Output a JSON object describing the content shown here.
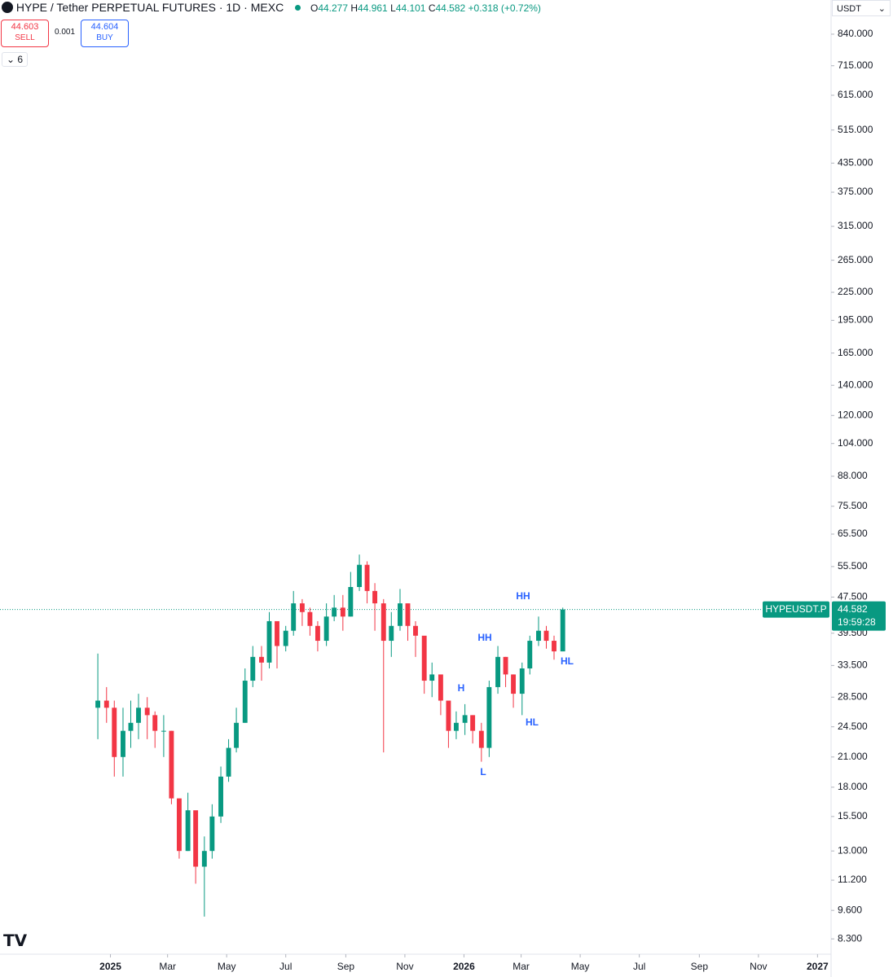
{
  "chart_data": {
    "type": "candlestick",
    "header": {
      "title": "HYPE / Tether PERPETUAL FUTURES · 1D · MEXC",
      "o_label": "O",
      "open": "44.277",
      "h_label": "H",
      "high": "44.961",
      "l_label": "L",
      "low": "44.101",
      "c_label": "C",
      "close": "44.582",
      "change": "+0.318 (+0.72%)",
      "sell_price": "44.603",
      "sell_label": "SELL",
      "spread": "0.001",
      "buy_price": "44.604",
      "buy_label": "BUY",
      "indicator_count": "6",
      "currency": "USDT"
    },
    "symbol_label": "HYPEUSDT.P",
    "last_price": 44.582,
    "countdown": "19:59:28",
    "log_scale": true,
    "up_color": "#089981",
    "down_color": "#f23645",
    "annotation_color": "#2962ff",
    "annotations": [
      "HH",
      "HH",
      "H",
      "HL",
      "L",
      "HL"
    ],
    "x": [
      -13,
      -4,
      4,
      13,
      21,
      29,
      38,
      46,
      55,
      63,
      71,
      80,
      88,
      97,
      105,
      114,
      122,
      130,
      139,
      147,
      156,
      164,
      172,
      181,
      189,
      198,
      206,
      214,
      223,
      231,
      240,
      248,
      257,
      265,
      273,
      282,
      290,
      299,
      307,
      315,
      324,
      332,
      341,
      349,
      357,
      366,
      374,
      383,
      391,
      400,
      408,
      416,
      425,
      433,
      442,
      450,
      458,
      467
    ],
    "open": [
      27,
      28,
      27,
      21,
      24,
      25,
      27,
      26,
      24,
      24,
      17,
      13,
      16,
      12,
      13,
      15.5,
      19,
      22,
      25,
      31,
      35,
      34,
      42,
      37,
      40,
      46,
      44,
      41,
      38,
      43,
      45,
      43,
      50,
      56,
      49,
      46,
      38,
      41,
      46,
      41,
      39,
      31,
      32,
      28,
      24,
      25,
      26,
      24,
      22,
      30,
      35,
      32,
      29,
      33,
      38,
      40,
      38,
      36
    ],
    "high": [
      35.6,
      30,
      28,
      27,
      28,
      29,
      28.5,
      26.5,
      26,
      24,
      17,
      17.5,
      15.5,
      14,
      16.5,
      20,
      23,
      27,
      33,
      37,
      37,
      44,
      42,
      41,
      49,
      47,
      45,
      42,
      46,
      48,
      48,
      54,
      59,
      57,
      51,
      47,
      44,
      49.5,
      46,
      42,
      38,
      34,
      31,
      27.5,
      26.5,
      27.5,
      26,
      25,
      31,
      37,
      35,
      32,
      34,
      39,
      43,
      41,
      39,
      45
    ],
    "low": [
      23,
      25,
      19,
      19,
      22,
      23,
      23,
      22,
      21,
      16.5,
      12.5,
      13,
      11,
      9.3,
      12.5,
      15,
      18.5,
      21.5,
      25,
      30,
      31,
      33,
      33,
      36,
      39,
      41,
      39,
      36,
      37,
      42,
      40,
      43,
      49,
      46,
      40,
      21.5,
      35,
      40,
      38,
      35,
      29,
      28.5,
      26,
      22,
      23,
      23.5,
      22.5,
      20.5,
      21,
      29,
      30,
      27,
      26,
      32,
      37,
      36.5,
      34.5,
      36
    ],
    "close": [
      28,
      27,
      21,
      24,
      25,
      27,
      26,
      24,
      24,
      17,
      13,
      16,
      12,
      13,
      15.5,
      19,
      22,
      25,
      31,
      35,
      34,
      42,
      37,
      40,
      46,
      44,
      41,
      38,
      43,
      45,
      43,
      50,
      56,
      49,
      46,
      38,
      41,
      46,
      41,
      39,
      31,
      32,
      28,
      24,
      25,
      26,
      24,
      22,
      30,
      35,
      32,
      29,
      33,
      38,
      40,
      38,
      36,
      44.582
    ],
    "xlim": [
      -114,
      744
    ],
    "xticks": [
      {
        "value": 0,
        "label": "2025"
      },
      {
        "value": 59,
        "label": "Mar"
      },
      {
        "value": 120,
        "label": "May"
      },
      {
        "value": 181,
        "label": "Jul"
      },
      {
        "value": 243,
        "label": "Sep"
      },
      {
        "value": 304,
        "label": "Nov"
      },
      {
        "value": 365,
        "label": "2026"
      },
      {
        "value": 424,
        "label": "Mar"
      },
      {
        "value": 485,
        "label": "May"
      },
      {
        "value": 546,
        "label": "Jul"
      },
      {
        "value": 608,
        "label": "Sep"
      },
      {
        "value": 669,
        "label": "Nov"
      },
      {
        "value": 730,
        "label": "2027"
      }
    ],
    "ylim": [
      7.74,
      1000
    ],
    "yticks": [
      {
        "value": 840,
        "label": "840.000"
      },
      {
        "value": 715,
        "label": "715.000"
      },
      {
        "value": 615,
        "label": "615.000"
      },
      {
        "value": 515,
        "label": "515.000"
      },
      {
        "value": 435,
        "label": "435.000"
      },
      {
        "value": 375,
        "label": "375.000"
      },
      {
        "value": 315,
        "label": "315.000"
      },
      {
        "value": 265,
        "label": "265.000"
      },
      {
        "value": 225,
        "label": "225.000"
      },
      {
        "value": 195,
        "label": "195.000"
      },
      {
        "value": 165,
        "label": "165.000"
      },
      {
        "value": 140,
        "label": "140.000"
      },
      {
        "value": 120,
        "label": "120.000"
      },
      {
        "value": 104,
        "label": "104.000"
      },
      {
        "value": 88,
        "label": "88.000"
      },
      {
        "value": 75.5,
        "label": "75.500"
      },
      {
        "value": 65.5,
        "label": "65.500"
      },
      {
        "value": 55.5,
        "label": "55.500"
      },
      {
        "value": 47.5,
        "label": "47.500"
      },
      {
        "value": 39.5,
        "label": "39.500"
      },
      {
        "value": 33.5,
        "label": "33.500"
      },
      {
        "value": 28.5,
        "label": "28.500"
      },
      {
        "value": 24.5,
        "label": "24.500"
      },
      {
        "value": 21,
        "label": "21.000"
      },
      {
        "value": 18,
        "label": "18.000"
      },
      {
        "value": 15.5,
        "label": "15.500"
      },
      {
        "value": 13,
        "label": "13.000"
      },
      {
        "value": 11.2,
        "label": "11.200"
      },
      {
        "value": 9.6,
        "label": "9.600"
      },
      {
        "value": 8.3,
        "label": "8.300"
      }
    ]
  }
}
